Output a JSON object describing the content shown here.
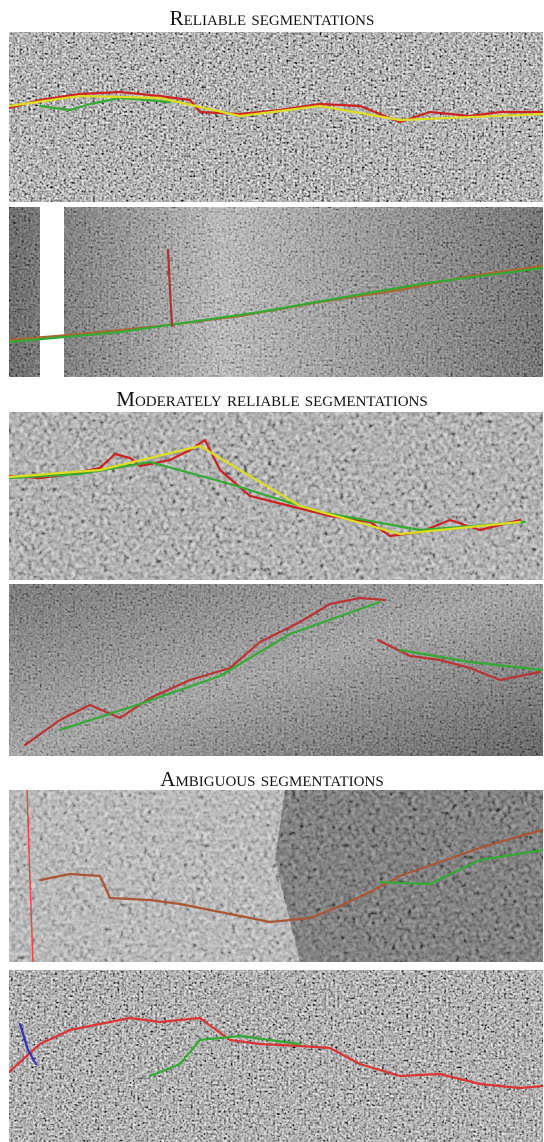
{
  "sections": [
    {
      "title": "Reliable segmentations"
    },
    {
      "title": "Moderately reliable segmentations"
    },
    {
      "title": "Ambiguous segmentations"
    }
  ]
}
